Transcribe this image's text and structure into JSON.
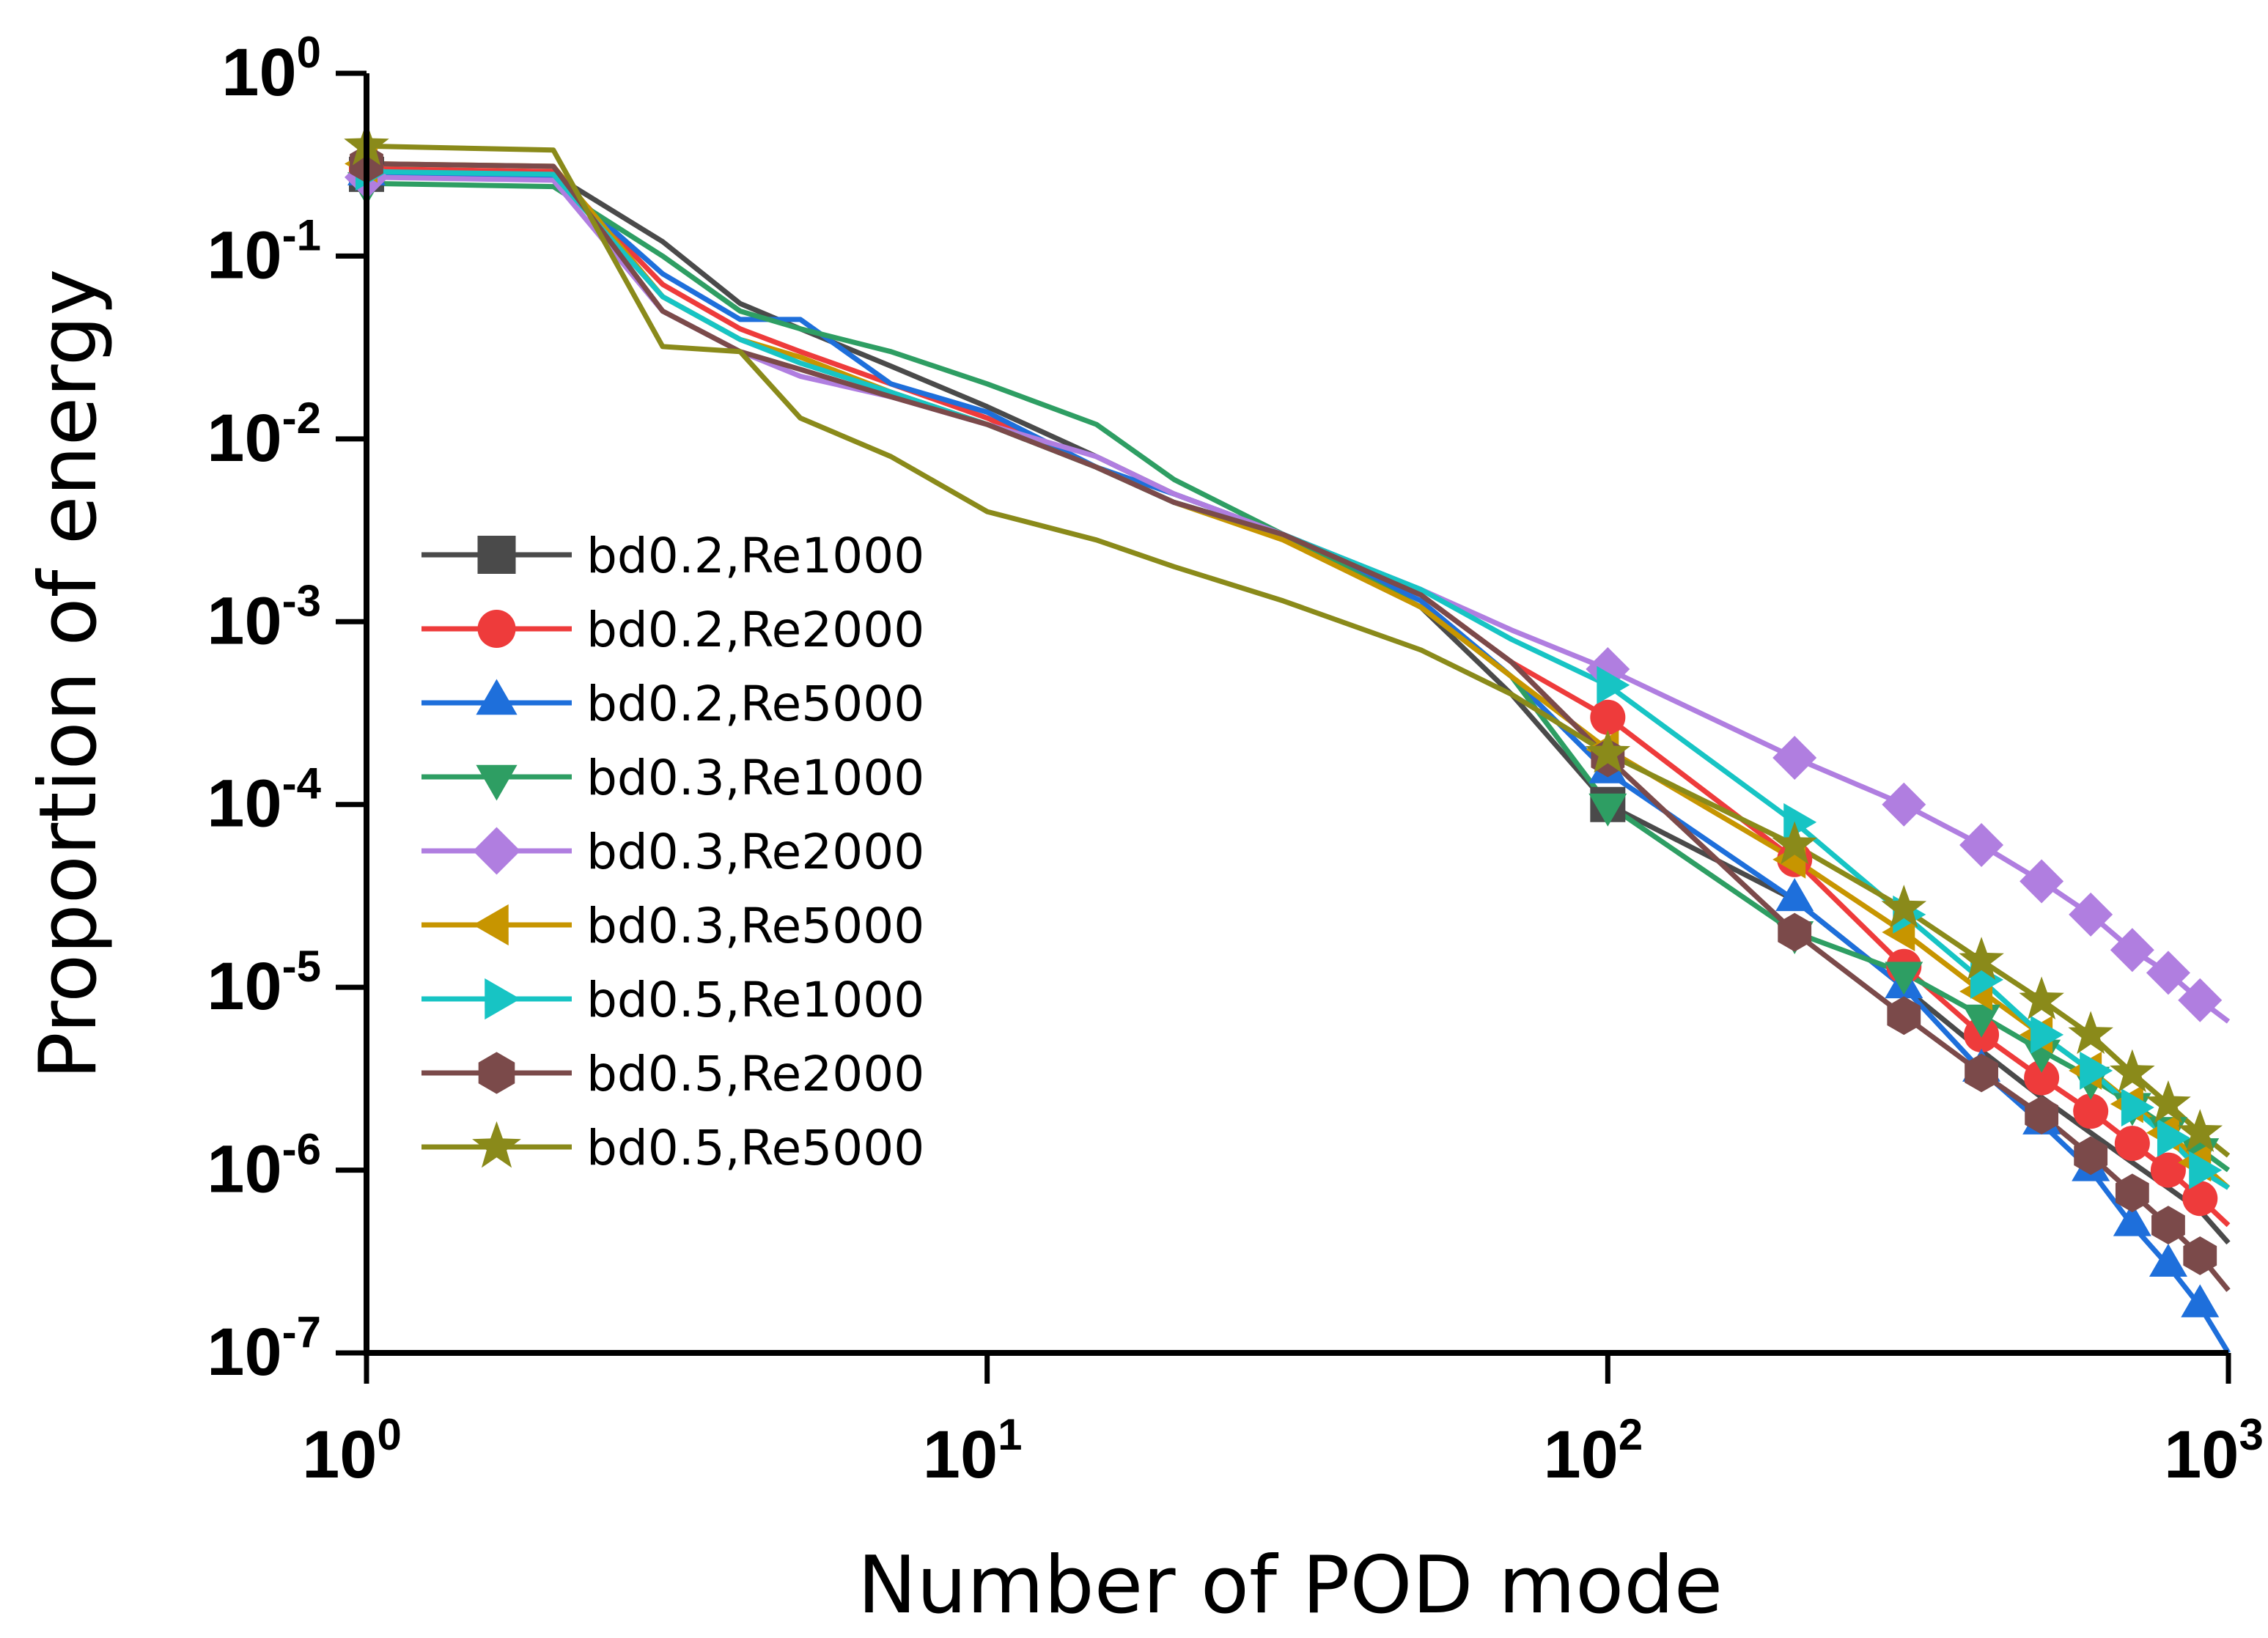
{
  "chart_data": {
    "type": "line",
    "xlabel": "Number of POD mode",
    "ylabel": "Proportion of energy",
    "xscale": "log",
    "yscale": "log",
    "xlim": [
      1,
      1000
    ],
    "ylim": [
      1e-07,
      1
    ],
    "grid": false,
    "legend_position": "left-center",
    "xticks": [
      {
        "value": 1,
        "base": "10",
        "exp": "0"
      },
      {
        "value": 10,
        "base": "10",
        "exp": "1"
      },
      {
        "value": 100,
        "base": "10",
        "exp": "2"
      },
      {
        "value": 1000,
        "base": "10",
        "exp": "3"
      }
    ],
    "yticks": [
      {
        "value": 1,
        "base": "10",
        "exp": "0"
      },
      {
        "value": 0.1,
        "base": "10",
        "exp": "-1"
      },
      {
        "value": 0.01,
        "base": "10",
        "exp": "-2"
      },
      {
        "value": 0.001,
        "base": "10",
        "exp": "-3"
      },
      {
        "value": 0.0001,
        "base": "10",
        "exp": "-4"
      },
      {
        "value": 1e-05,
        "base": "10",
        "exp": "-5"
      },
      {
        "value": 1e-06,
        "base": "10",
        "exp": "-6"
      },
      {
        "value": 1e-07,
        "base": "10",
        "exp": "-7"
      }
    ],
    "series": [
      {
        "name": "bd0.2,Re1000",
        "color": "#4a4a4a",
        "marker": "square",
        "x": [
          1,
          2,
          3,
          4,
          5,
          7,
          10,
          15,
          20,
          30,
          50,
          70,
          100,
          200,
          300,
          400,
          500,
          600,
          700,
          800,
          900,
          1000
        ],
        "y": [
          0.28,
          0.28,
          0.12,
          0.055,
          0.04,
          0.025,
          0.015,
          0.008,
          0.005,
          0.003,
          0.0012,
          0.0004,
          0.0001,
          3e-05,
          1e-05,
          4.5e-06,
          2.5e-06,
          1.6e-06,
          1.1e-06,
          8e-07,
          6e-07,
          4e-07
        ],
        "marker_x": [
          1,
          100
        ]
      },
      {
        "name": "bd0.2,Re2000",
        "color": "#ee3b3b",
        "marker": "circle",
        "x": [
          1,
          2,
          3,
          4,
          5,
          7,
          10,
          15,
          20,
          30,
          50,
          70,
          100,
          200,
          300,
          400,
          500,
          600,
          700,
          800,
          900,
          1000
        ],
        "y": [
          0.3,
          0.29,
          0.07,
          0.04,
          0.03,
          0.02,
          0.013,
          0.007,
          0.0045,
          0.003,
          0.0014,
          0.0006,
          0.0003,
          5e-05,
          1.3e-05,
          5.5e-06,
          3.2e-06,
          2.1e-06,
          1.4e-06,
          1e-06,
          7e-07,
          5e-07
        ],
        "marker_x": [
          1,
          100,
          200,
          300,
          400,
          500,
          600,
          700,
          800,
          900
        ]
      },
      {
        "name": "bd0.2,Re5000",
        "color": "#1e6fdb",
        "marker": "triangle-up",
        "x": [
          1,
          2,
          3,
          4,
          5,
          7,
          10,
          15,
          20,
          30,
          50,
          70,
          100,
          200,
          300,
          400,
          500,
          600,
          700,
          800,
          900,
          1000
        ],
        "y": [
          0.28,
          0.27,
          0.08,
          0.045,
          0.045,
          0.02,
          0.014,
          0.007,
          0.005,
          0.003,
          0.0013,
          0.0005,
          0.00015,
          3e-05,
          1e-05,
          3.5e-06,
          1.8e-06,
          1e-06,
          5e-07,
          3e-07,
          1.8e-07,
          1e-07
        ],
        "marker_x": [
          1,
          100,
          200,
          300,
          400,
          500,
          600,
          700,
          800,
          900
        ]
      },
      {
        "name": "bd0.3,Re1000",
        "color": "#2e9e63",
        "marker": "triangle-down",
        "x": [
          1,
          2,
          3,
          4,
          5,
          7,
          10,
          15,
          20,
          30,
          50,
          70,
          100,
          200,
          300,
          400,
          500,
          600,
          700,
          800,
          900,
          1000
        ],
        "y": [
          0.25,
          0.24,
          0.1,
          0.05,
          0.04,
          0.03,
          0.02,
          0.012,
          0.006,
          0.003,
          0.0012,
          0.0005,
          0.0001,
          2e-05,
          1.2e-05,
          7e-06,
          4.5e-06,
          3.2e-06,
          2.3e-06,
          1.7e-06,
          1.3e-06,
          1e-06
        ],
        "marker_x": [
          1,
          100,
          200,
          300,
          400,
          500,
          600,
          700,
          800,
          900
        ]
      },
      {
        "name": "bd0.3,Re2000",
        "color": "#b07ee0",
        "marker": "diamond",
        "x": [
          1,
          2,
          3,
          4,
          5,
          7,
          10,
          15,
          20,
          30,
          50,
          70,
          100,
          200,
          300,
          400,
          500,
          600,
          700,
          800,
          900,
          1000
        ],
        "y": [
          0.27,
          0.26,
          0.05,
          0.03,
          0.022,
          0.017,
          0.012,
          0.008,
          0.005,
          0.003,
          0.0015,
          0.0009,
          0.00055,
          0.00018,
          0.0001,
          6e-05,
          3.8e-05,
          2.5e-05,
          1.6e-05,
          1.2e-05,
          8.5e-06,
          6.5e-06
        ],
        "marker_x": [
          1,
          100,
          200,
          300,
          400,
          500,
          600,
          700,
          800,
          900
        ]
      },
      {
        "name": "bd0.3,Re5000",
        "color": "#c79500",
        "marker": "triangle-left",
        "x": [
          1,
          2,
          3,
          4,
          5,
          7,
          10,
          15,
          20,
          30,
          50,
          70,
          100,
          200,
          300,
          400,
          500,
          600,
          700,
          800,
          900,
          1000
        ],
        "y": [
          0.32,
          0.31,
          0.06,
          0.035,
          0.028,
          0.018,
          0.012,
          0.007,
          0.0045,
          0.0028,
          0.0012,
          0.0005,
          0.0002,
          5e-05,
          2e-05,
          9.5e-06,
          5.5e-06,
          3.5e-06,
          2.3e-06,
          1.6e-06,
          1.1e-06,
          8e-07
        ],
        "marker_x": [
          1,
          100,
          200,
          300,
          400,
          500,
          600,
          700,
          800,
          900
        ]
      },
      {
        "name": "bd0.5,Re1000",
        "color": "#17c4c4",
        "marker": "triangle-right",
        "x": [
          1,
          2,
          3,
          4,
          5,
          7,
          10,
          15,
          20,
          30,
          50,
          70,
          100,
          200,
          300,
          400,
          500,
          600,
          700,
          800,
          900,
          1000
        ],
        "y": [
          0.29,
          0.28,
          0.06,
          0.035,
          0.026,
          0.018,
          0.012,
          0.007,
          0.0045,
          0.003,
          0.0015,
          0.0008,
          0.00045,
          8e-05,
          2.5e-05,
          1.1e-05,
          5.5e-06,
          3.5e-06,
          2.2e-06,
          1.5e-06,
          1e-06,
          8e-07
        ],
        "marker_x": [
          1,
          100,
          200,
          300,
          400,
          500,
          600,
          700,
          800,
          900
        ]
      },
      {
        "name": "bd0.5,Re2000",
        "color": "#7b4a4a",
        "marker": "hexagon",
        "x": [
          1,
          2,
          3,
          4,
          5,
          7,
          10,
          15,
          20,
          30,
          50,
          70,
          100,
          200,
          300,
          400,
          500,
          600,
          700,
          800,
          900,
          1000
        ],
        "y": [
          0.32,
          0.31,
          0.05,
          0.03,
          0.024,
          0.017,
          0.012,
          0.007,
          0.0045,
          0.003,
          0.0014,
          0.0006,
          0.00018,
          2e-05,
          7e-06,
          3.4e-06,
          2e-06,
          1.2e-06,
          7.5e-07,
          5e-07,
          3.4e-07,
          2.2e-07
        ],
        "marker_x": [
          1,
          100,
          200,
          300,
          400,
          500,
          600,
          700,
          800,
          900
        ]
      },
      {
        "name": "bd0.5,Re5000",
        "color": "#8a8a1a",
        "marker": "star",
        "x": [
          1,
          2,
          3,
          4,
          5,
          7,
          10,
          15,
          20,
          30,
          50,
          70,
          100,
          200,
          300,
          400,
          500,
          600,
          700,
          800,
          900,
          1000
        ],
        "y": [
          0.4,
          0.38,
          0.032,
          0.03,
          0.013,
          0.008,
          0.004,
          0.0028,
          0.002,
          0.0013,
          0.0007,
          0.0004,
          0.00019,
          6e-05,
          2.7e-05,
          1.4e-05,
          8.5e-06,
          5.5e-06,
          3.4e-06,
          2.3e-06,
          1.6e-06,
          1.2e-06
        ],
        "marker_x": [
          1,
          100,
          200,
          300,
          400,
          500,
          600,
          700,
          800,
          900
        ]
      }
    ]
  }
}
